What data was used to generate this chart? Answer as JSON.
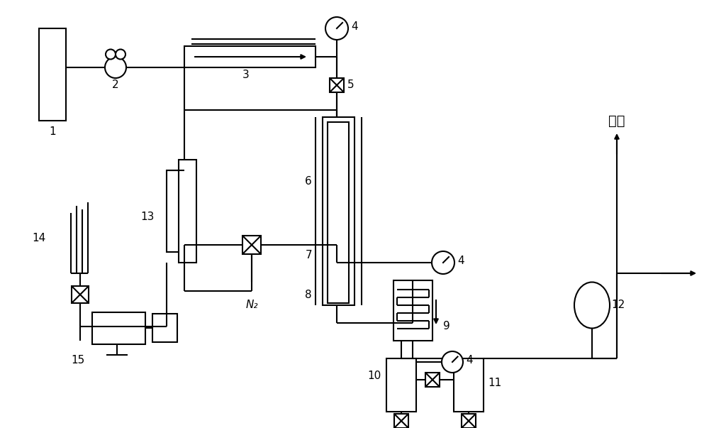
{
  "bg": "#ffffff",
  "lc": "#000000",
  "lw": 1.5,
  "fangkong": "放空",
  "n2": "N₂"
}
